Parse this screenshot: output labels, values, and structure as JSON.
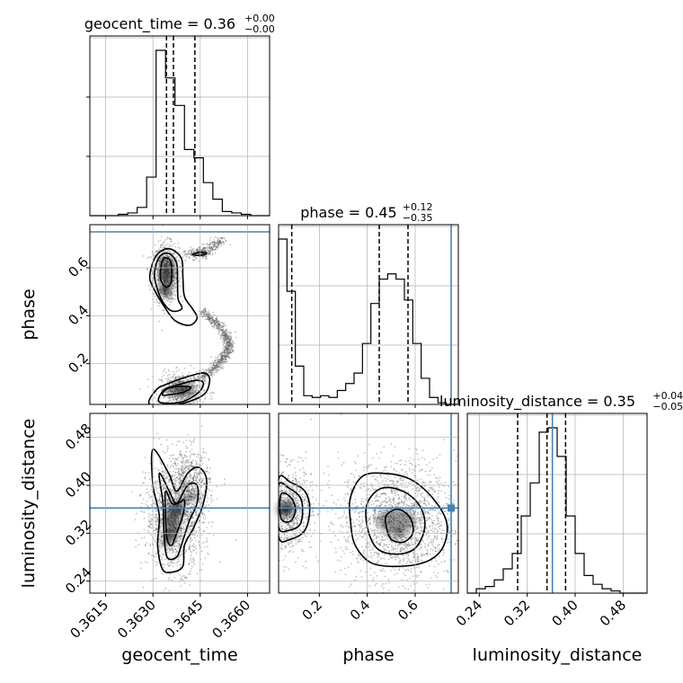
{
  "chart_data": {
    "type": "corner",
    "parameters": [
      "geocent_time",
      "phase",
      "luminosity_distance"
    ],
    "axis_labels": {
      "x": [
        "geocent_time",
        "phase",
        "luminosity_distance"
      ],
      "y": [
        "",
        "phase",
        "luminosity_distance"
      ]
    },
    "ranges": {
      "geocent_time": [
        0.361,
        0.3667
      ],
      "phase": [
        0.03,
        0.78
      ],
      "luminosity_distance": [
        0.22,
        0.52
      ]
    },
    "ticks": {
      "geocent_time": [
        0.3615,
        0.363,
        0.3645,
        0.366
      ],
      "phase": [
        0.2,
        0.4,
        0.6
      ],
      "luminosity_distance": [
        0.24,
        0.32,
        0.4,
        0.48
      ]
    },
    "tick_labels": {
      "geocent_time": [
        "0.3615",
        "0.3630",
        "0.3645",
        "0.3660"
      ],
      "phase": [
        "0.2",
        "0.4",
        "0.6"
      ],
      "luminosity_distance": [
        "0.24",
        "0.32",
        "0.40",
        "0.48"
      ]
    },
    "titles": [
      {
        "param": "geocent_time",
        "text": "geocent_time = 0.36",
        "sup": "+0.00",
        "sub": "−0.00"
      },
      {
        "param": "phase",
        "text": "phase = 0.45",
        "sup": "+0.12",
        "sub": "−0.35"
      },
      {
        "param": "luminosity_distance",
        "text": "luminosity_distance = 0.35",
        "sup": "+0.04",
        "sub": "−0.05"
      }
    ],
    "quantiles": {
      "geocent_time": [
        0.36343,
        0.36365,
        0.36433
      ],
      "phase": [
        0.085,
        0.45,
        0.57
      ],
      "luminosity_distance": [
        0.304,
        0.353,
        0.384
      ]
    },
    "truths": {
      "geocent_time": null,
      "phase": 0.75,
      "luminosity_distance": 0.362
    },
    "histograms": {
      "geocent_time": {
        "edges": [
          0.361,
          0.3613,
          0.3616,
          0.3619,
          0.3622,
          0.3625,
          0.3628,
          0.3631,
          0.3634,
          0.3637,
          0.364,
          0.3643,
          0.3646,
          0.3649,
          0.3652,
          0.3655,
          0.3658,
          0.3661,
          0.3664,
          0.3667
        ],
        "counts": [
          0,
          0,
          0,
          1,
          2,
          6,
          28,
          120,
          100,
          80,
          48,
          42,
          24,
          12,
          3,
          2,
          1,
          0,
          0
        ]
      },
      "phase": {
        "edges": [
          0.03,
          0.065,
          0.1,
          0.135,
          0.17,
          0.205,
          0.24,
          0.275,
          0.31,
          0.345,
          0.38,
          0.415,
          0.45,
          0.485,
          0.52,
          0.555,
          0.59,
          0.625,
          0.66,
          0.695,
          0.73,
          0.765,
          0.78
        ],
        "counts": [
          95,
          65,
          22,
          5,
          4,
          5,
          4,
          8,
          12,
          18,
          35,
          58,
          72,
          75,
          72,
          60,
          35,
          15,
          4,
          1,
          0,
          0
        ]
      },
      "luminosity_distance": {
        "edges": [
          0.22,
          0.235,
          0.25,
          0.265,
          0.28,
          0.295,
          0.31,
          0.325,
          0.34,
          0.355,
          0.37,
          0.385,
          0.4,
          0.415,
          0.43,
          0.445,
          0.46,
          0.475,
          0.49,
          0.505,
          0.52
        ],
        "counts": [
          0,
          2,
          3,
          6,
          11,
          18,
          35,
          50,
          73,
          75,
          62,
          35,
          18,
          8,
          4,
          2,
          1,
          0,
          0,
          0
        ]
      }
    },
    "contours_2d": {
      "geocent_time|phase": [
        {
          "level": 1,
          "pts": [
            [
              0.3629,
              0.03
            ],
            [
              0.3631,
              0.09
            ],
            [
              0.36345,
              0.115
            ],
            [
              0.3642,
              0.15
            ],
            [
              0.36465,
              0.16
            ],
            [
              0.3648,
              0.13
            ],
            [
              0.3646,
              0.07
            ],
            [
              0.3638,
              0.03
            ]
          ]
        },
        {
          "level": 2,
          "pts": [
            [
              0.3632,
              0.04
            ],
            [
              0.36335,
              0.09
            ],
            [
              0.36375,
              0.11
            ],
            [
              0.36435,
              0.13
            ],
            [
              0.3646,
              0.12
            ],
            [
              0.36445,
              0.08
            ],
            [
              0.3639,
              0.04
            ]
          ]
        },
        {
          "level": 3,
          "pts": [
            [
              0.3633,
              0.07
            ],
            [
              0.36345,
              0.095
            ],
            [
              0.3639,
              0.105
            ],
            [
              0.3642,
              0.1
            ],
            [
              0.36395,
              0.08
            ],
            [
              0.3635,
              0.07
            ]
          ]
        },
        {
          "level": 1,
          "pts": [
            [
              0.3629,
              0.57
            ],
            [
              0.3631,
              0.65
            ],
            [
              0.3635,
              0.68
            ],
            [
              0.3639,
              0.64
            ],
            [
              0.36395,
              0.56
            ],
            [
              0.364,
              0.48
            ],
            [
              0.36425,
              0.43
            ],
            [
              0.3644,
              0.39
            ],
            [
              0.36415,
              0.36
            ],
            [
              0.3637,
              0.38
            ],
            [
              0.36335,
              0.44
            ],
            [
              0.363,
              0.52
            ]
          ]
        },
        {
          "level": 2,
          "pts": [
            [
              0.36305,
              0.58
            ],
            [
              0.3632,
              0.645
            ],
            [
              0.3635,
              0.66
            ],
            [
              0.36375,
              0.62
            ],
            [
              0.36378,
              0.54
            ],
            [
              0.3638,
              0.47
            ],
            [
              0.36392,
              0.43
            ],
            [
              0.3636,
              0.42
            ],
            [
              0.3633,
              0.46
            ],
            [
              0.3631,
              0.53
            ]
          ]
        },
        {
          "level": 3,
          "pts": [
            [
              0.36325,
              0.6
            ],
            [
              0.36335,
              0.64
            ],
            [
              0.36355,
              0.63
            ],
            [
              0.3636,
              0.58
            ],
            [
              0.36355,
              0.53
            ],
            [
              0.3634,
              0.52
            ],
            [
              0.36325,
              0.55
            ]
          ]
        },
        {
          "level": 3,
          "pts": [
            [
              0.36425,
              0.655
            ],
            [
              0.3645,
              0.665
            ],
            [
              0.3647,
              0.66
            ],
            [
              0.3645,
              0.652
            ]
          ]
        }
      ],
      "geocent_time|luminosity_distance": [
        {
          "level": 1,
          "pts": [
            [
              0.363,
              0.46
            ],
            [
              0.3635,
              0.42
            ],
            [
              0.36375,
              0.39
            ],
            [
              0.3641,
              0.42
            ],
            [
              0.36445,
              0.43
            ],
            [
              0.3647,
              0.41
            ],
            [
              0.3646,
              0.37
            ],
            [
              0.3643,
              0.33
            ],
            [
              0.364,
              0.3
            ],
            [
              0.36395,
              0.265
            ],
            [
              0.3636,
              0.255
            ],
            [
              0.3633,
              0.26
            ],
            [
              0.36315,
              0.3
            ],
            [
              0.3632,
              0.35
            ],
            [
              0.363,
              0.4
            ]
          ]
        },
        {
          "level": 2,
          "pts": [
            [
              0.3632,
              0.42
            ],
            [
              0.36352,
              0.39
            ],
            [
              0.36375,
              0.37
            ],
            [
              0.3641,
              0.4
            ],
            [
              0.3644,
              0.4
            ],
            [
              0.3644,
              0.37
            ],
            [
              0.36415,
              0.34
            ],
            [
              0.3639,
              0.3
            ],
            [
              0.36375,
              0.28
            ],
            [
              0.36345,
              0.28
            ],
            [
              0.36335,
              0.32
            ],
            [
              0.36332,
              0.37
            ]
          ]
        },
        {
          "level": 3,
          "pts": [
            [
              0.3634,
              0.39
            ],
            [
              0.3636,
              0.37
            ],
            [
              0.3638,
              0.37
            ],
            [
              0.364,
              0.375
            ],
            [
              0.36395,
              0.35
            ],
            [
              0.36375,
              0.32
            ],
            [
              0.3636,
              0.3
            ],
            [
              0.36345,
              0.31
            ],
            [
              0.3634,
              0.35
            ]
          ]
        }
      ],
      "phase|luminosity_distance": [
        {
          "level": 1,
          "pts": [
            [
              0.03,
              0.41
            ],
            [
              0.08,
              0.405
            ],
            [
              0.14,
              0.39
            ],
            [
              0.16,
              0.36
            ],
            [
              0.14,
              0.325
            ],
            [
              0.08,
              0.31
            ],
            [
              0.03,
              0.315
            ]
          ]
        },
        {
          "level": 2,
          "pts": [
            [
              0.03,
              0.4
            ],
            [
              0.075,
              0.395
            ],
            [
              0.12,
              0.38
            ],
            [
              0.13,
              0.36
            ],
            [
              0.12,
              0.335
            ],
            [
              0.075,
              0.325
            ],
            [
              0.03,
              0.33
            ]
          ]
        },
        {
          "level": 3,
          "pts": [
            [
              0.04,
              0.385
            ],
            [
              0.08,
              0.38
            ],
            [
              0.1,
              0.36
            ],
            [
              0.08,
              0.34
            ],
            [
              0.04,
              0.345
            ]
          ]
        },
        {
          "level": 1,
          "pts": [
            [
              0.33,
              0.38
            ],
            [
              0.38,
              0.415
            ],
            [
              0.47,
              0.42
            ],
            [
              0.58,
              0.41
            ],
            [
              0.67,
              0.38
            ],
            [
              0.73,
              0.34
            ],
            [
              0.72,
              0.3
            ],
            [
              0.66,
              0.275
            ],
            [
              0.55,
              0.265
            ],
            [
              0.42,
              0.27
            ],
            [
              0.35,
              0.3
            ],
            [
              0.33,
              0.34
            ]
          ]
        },
        {
          "level": 2,
          "pts": [
            [
              0.4,
              0.37
            ],
            [
              0.46,
              0.395
            ],
            [
              0.55,
              0.39
            ],
            [
              0.62,
              0.365
            ],
            [
              0.64,
              0.33
            ],
            [
              0.6,
              0.295
            ],
            [
              0.52,
              0.285
            ],
            [
              0.44,
              0.295
            ],
            [
              0.4,
              0.33
            ]
          ]
        },
        {
          "level": 3,
          "pts": [
            [
              0.48,
              0.35
            ],
            [
              0.53,
              0.36
            ],
            [
              0.58,
              0.345
            ],
            [
              0.59,
              0.32
            ],
            [
              0.55,
              0.305
            ],
            [
              0.5,
              0.31
            ],
            [
              0.48,
              0.33
            ]
          ]
        }
      ]
    }
  }
}
